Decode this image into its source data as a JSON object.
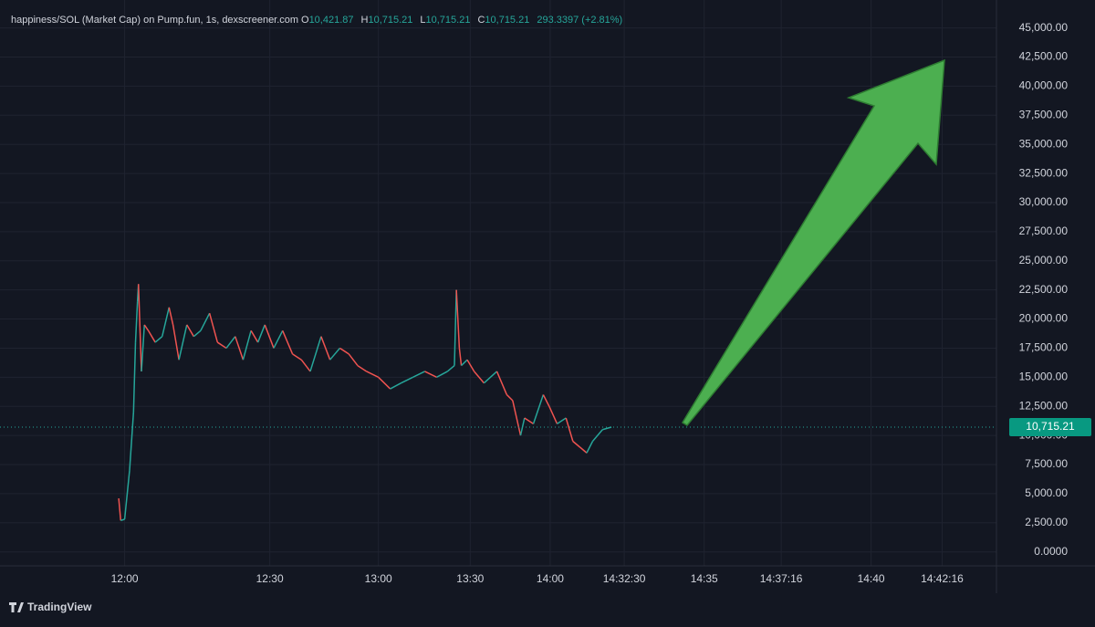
{
  "chart_data": {
    "type": "line",
    "title": "happiness/SOL (Market Cap) on Pump.fun, 1s, dexscreener.com",
    "ohlc": [
      {
        "label": "O",
        "value": "10,421.87"
      },
      {
        "label": "H",
        "value": "10,715.21"
      },
      {
        "label": "L",
        "value": "10,715.21"
      },
      {
        "label": "C",
        "value": "10,715.21"
      }
    ],
    "change": "293.3397 (+2.81%)",
    "brand": "TradingView",
    "up_color": "#26a69a",
    "down_color": "#ef5350",
    "last_price": {
      "value": 10715.21,
      "label": "10,715.21"
    },
    "grid": true,
    "x": [
      11.1,
      11.3,
      11.7,
      12.2,
      12.6,
      12.8,
      13.0,
      13.1,
      13.4,
      13.7,
      14.1,
      14.8,
      15.5,
      16.2,
      16.6,
      17.2,
      18.0,
      18.7,
      19.4,
      20.3,
      21.1,
      22.0,
      22.9,
      23.7,
      24.5,
      25.2,
      25.9,
      26.8,
      27.7,
      28.7,
      29.6,
      30.5,
      31.6,
      32.5,
      33.5,
      34.4,
      35.3,
      36.2,
      37.4,
      38.6,
      39.7,
      40.9,
      42.1,
      43.3,
      44.4,
      45.1,
      45.3,
      45.6,
      45.8,
      46.4,
      47.1,
      48.1,
      49.4,
      50.4,
      51.0,
      51.8,
      52.2,
      53.1,
      54.1,
      54.7,
      55.5,
      56.4,
      57.1,
      57.8,
      58.5,
      59.1,
      60.1,
      61.0
    ],
    "values": [
      4600,
      2700,
      2800,
      7000,
      12000,
      18000,
      21500,
      23000,
      15500,
      19500,
      19000,
      18000,
      18500,
      21000,
      19500,
      16500,
      19500,
      18500,
      19000,
      20500,
      18000,
      17500,
      18500,
      16500,
      19000,
      18000,
      19500,
      17500,
      19000,
      17000,
      16500,
      15500,
      18500,
      16500,
      17500,
      17000,
      16000,
      15500,
      15000,
      14000,
      14500,
      15000,
      15500,
      15000,
      15500,
      16000,
      22500,
      17500,
      16000,
      16500,
      15500,
      14500,
      15500,
      13500,
      13000,
      10000,
      11500,
      11000,
      13500,
      12500,
      11000,
      11500,
      9500,
      9000,
      8500,
      9500,
      10500,
      10715.21
    ],
    "xlim": [
      0,
      100
    ],
    "xticks": [
      {
        "value": 11.7,
        "label": "12:00"
      },
      {
        "value": 26.4,
        "label": "12:30"
      },
      {
        "value": 37.4,
        "label": "13:00"
      },
      {
        "value": 46.7,
        "label": "13:30"
      },
      {
        "value": 54.8,
        "label": "14:00"
      },
      {
        "value": 62.3,
        "label": "14:32:30"
      },
      {
        "value": 70.4,
        "label": "14:35"
      },
      {
        "value": 78.2,
        "label": "14:37:16"
      },
      {
        "value": 87.3,
        "label": "14:40"
      },
      {
        "value": 94.5,
        "label": "14:42:16"
      }
    ],
    "ylim": [
      -1200,
      47400
    ],
    "yticks": [
      {
        "value": 0,
        "label": "0.0000"
      },
      {
        "value": 2500,
        "label": "2,500.00"
      },
      {
        "value": 5000,
        "label": "5,000.00"
      },
      {
        "value": 7500,
        "label": "7,500.00"
      },
      {
        "value": 10000,
        "label": "10,000.00"
      },
      {
        "value": 12500,
        "label": "12,500.00"
      },
      {
        "value": 15000,
        "label": "15,000.00"
      },
      {
        "value": 17500,
        "label": "17,500.00"
      },
      {
        "value": 20000,
        "label": "20,000.00"
      },
      {
        "value": 22500,
        "label": "22,500.00"
      },
      {
        "value": 25000,
        "label": "25,000.00"
      },
      {
        "value": 27500,
        "label": "27,500.00"
      },
      {
        "value": 30000,
        "label": "30,000.00"
      },
      {
        "value": 32500,
        "label": "32,500.00"
      },
      {
        "value": 35000,
        "label": "35,000.00"
      },
      {
        "value": 37500,
        "label": "37,500.00"
      },
      {
        "value": 40000,
        "label": "40,000.00"
      },
      {
        "value": 42500,
        "label": "42,500.00"
      },
      {
        "value": 45000,
        "label": "45,000.00"
      }
    ]
  }
}
